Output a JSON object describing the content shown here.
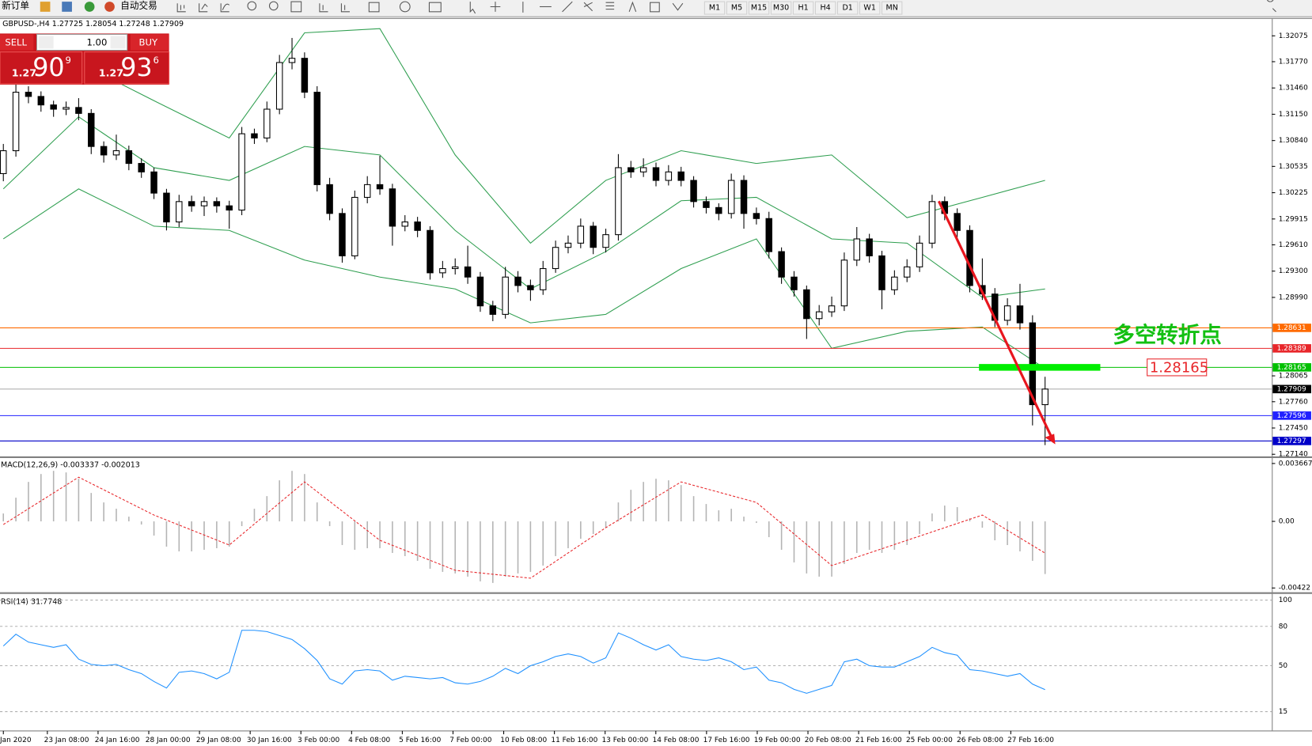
{
  "toolbar": {
    "new_order": "新订单",
    "auto_trading": "自动交易",
    "timeframes": [
      "M1",
      "M5",
      "M15",
      "M30",
      "H1",
      "H4",
      "D1",
      "W1",
      "MN"
    ]
  },
  "trade_panel": {
    "sell": "SELL",
    "lot": "1.00",
    "buy": "BUY",
    "sell_price": {
      "big": "1.27",
      "main": "90",
      "frac": "9"
    },
    "buy_price": {
      "big": "1.27",
      "main": "93",
      "frac": "6"
    }
  },
  "time_axis": [
    "Jan 2020",
    "23 Jan 08:00",
    "24 Jan 16:00",
    "28 Jan 00:00",
    "29 Jan 08:00",
    "30 Jan 16:00",
    "3 Feb 00:00",
    "4 Feb 08:00",
    "5 Feb 16:00",
    "7 Feb 00:00",
    "10 Feb 08:00",
    "11 Feb 16:00",
    "13 Feb 00:00",
    "14 Feb 08:00",
    "17 Feb 16:00",
    "19 Feb 00:00",
    "20 Feb 08:00",
    "21 Feb 16:00",
    "25 Feb 00:00",
    "26 Feb 08:00",
    "27 Feb 16:00"
  ],
  "chart_data": [
    {
      "type": "candlestick",
      "title": "GBPUSD-,H4 1.27725 1.28054 1.27248 1.27909",
      "bull_color": "#ffffff",
      "bear_color": "#000000",
      "candles": [
        [
          1.3045,
          1.308,
          1.3036,
          1.3072
        ],
        [
          1.3072,
          1.315,
          1.3065,
          1.3141
        ],
        [
          1.3141,
          1.3148,
          1.3128,
          1.3136
        ],
        [
          1.3136,
          1.3142,
          1.3118,
          1.3126
        ],
        [
          1.3126,
          1.3131,
          1.3112,
          1.3121
        ],
        [
          1.3121,
          1.313,
          1.3114,
          1.3123
        ],
        [
          1.3123,
          1.3134,
          1.3108,
          1.3116
        ],
        [
          1.3116,
          1.3121,
          1.3068,
          1.3077
        ],
        [
          1.3077,
          1.3083,
          1.3058,
          1.3067
        ],
        [
          1.3067,
          1.3091,
          1.3061,
          1.3072
        ],
        [
          1.3072,
          1.3078,
          1.3049,
          1.3057
        ],
        [
          1.3057,
          1.3063,
          1.304,
          1.3047
        ],
        [
          1.3047,
          1.3052,
          1.3015,
          1.3022
        ],
        [
          1.3022,
          1.3027,
          1.2978,
          1.2988
        ],
        [
          1.2988,
          1.302,
          1.2982,
          1.3012
        ],
        [
          1.3012,
          1.3019,
          1.3,
          1.3007
        ],
        [
          1.3007,
          1.3018,
          1.2995,
          1.3012
        ],
        [
          1.3012,
          1.3017,
          1.2999,
          1.3007
        ],
        [
          1.3007,
          1.3013,
          1.298,
          1.3002
        ],
        [
          1.3002,
          1.31,
          1.2996,
          1.3092
        ],
        [
          1.3092,
          1.3098,
          1.308,
          1.3087
        ],
        [
          1.3087,
          1.313,
          1.3082,
          1.3121
        ],
        [
          1.3121,
          1.3185,
          1.3115,
          1.3176
        ],
        [
          1.3176,
          1.3205,
          1.3168,
          1.3181
        ],
        [
          1.3181,
          1.3188,
          1.3134,
          1.3141
        ],
        [
          1.3141,
          1.3148,
          1.3024,
          1.3032
        ],
        [
          1.3032,
          1.304,
          1.299,
          1.2998
        ],
        [
          1.2998,
          1.3004,
          1.294,
          1.2948
        ],
        [
          1.2948,
          1.3025,
          1.2944,
          1.3017
        ],
        [
          1.3017,
          1.3042,
          1.301,
          1.3032
        ],
        [
          1.3032,
          1.3066,
          1.302,
          1.3027
        ],
        [
          1.3027,
          1.3033,
          1.296,
          1.2983
        ],
        [
          1.2983,
          1.2996,
          1.2977,
          1.2988
        ],
        [
          1.2988,
          1.2994,
          1.297,
          1.2978
        ],
        [
          1.2978,
          1.2983,
          1.292,
          1.2928
        ],
        [
          1.2928,
          1.2942,
          1.2922,
          1.2933
        ],
        [
          1.2933,
          1.2945,
          1.2926,
          1.2935
        ],
        [
          1.2935,
          1.296,
          1.2915,
          1.2923
        ],
        [
          1.2923,
          1.2929,
          1.2882,
          1.2889
        ],
        [
          1.2889,
          1.2895,
          1.2871,
          1.2879
        ],
        [
          1.2879,
          1.2935,
          1.2874,
          1.2923
        ],
        [
          1.2923,
          1.293,
          1.2905,
          1.2913
        ],
        [
          1.2913,
          1.292,
          1.2895,
          1.2908
        ],
        [
          1.2908,
          1.2942,
          1.2902,
          1.2933
        ],
        [
          1.2933,
          1.2966,
          1.2928,
          1.2958
        ],
        [
          1.2958,
          1.2972,
          1.2951,
          1.2963
        ],
        [
          1.2963,
          1.2992,
          1.2957,
          1.2983
        ],
        [
          1.2983,
          1.2988,
          1.295,
          1.2958
        ],
        [
          1.2958,
          1.298,
          1.2952,
          1.2973
        ],
        [
          1.2973,
          1.3068,
          1.2966,
          1.3052
        ],
        [
          1.3052,
          1.306,
          1.304,
          1.3047
        ],
        [
          1.3047,
          1.3063,
          1.3041,
          1.3052
        ],
        [
          1.3052,
          1.3058,
          1.303,
          1.3037
        ],
        [
          1.3037,
          1.3055,
          1.3031,
          1.3047
        ],
        [
          1.3047,
          1.3053,
          1.303,
          1.3037
        ],
        [
          1.3037,
          1.3042,
          1.3005,
          1.3012
        ],
        [
          1.3012,
          1.3018,
          1.2998,
          1.3005
        ],
        [
          1.3005,
          1.301,
          1.299,
          1.2998
        ],
        [
          1.2998,
          1.3045,
          1.2992,
          1.3037
        ],
        [
          1.3037,
          1.3043,
          1.298,
          1.2998
        ],
        [
          1.2998,
          1.3005,
          1.2985,
          1.2992
        ],
        [
          1.2992,
          1.3,
          1.2945,
          1.2953
        ],
        [
          1.2953,
          1.2958,
          1.2915,
          1.2923
        ],
        [
          1.2923,
          1.293,
          1.29,
          1.2908
        ],
        [
          1.2908,
          1.2913,
          1.285,
          1.2874
        ],
        [
          1.2874,
          1.289,
          1.2866,
          1.2882
        ],
        [
          1.2882,
          1.29,
          1.2876,
          1.2889
        ],
        [
          1.2889,
          1.2952,
          1.2883,
          1.2943
        ],
        [
          1.2943,
          1.2982,
          1.2936,
          1.2968
        ],
        [
          1.2968,
          1.2974,
          1.294,
          1.2948
        ],
        [
          1.2948,
          1.2954,
          1.2885,
          1.2908
        ],
        [
          1.2908,
          1.2931,
          1.2902,
          1.2923
        ],
        [
          1.2923,
          1.2944,
          1.2917,
          1.2935
        ],
        [
          1.2935,
          1.2972,
          1.2929,
          1.2963
        ],
        [
          1.2963,
          1.302,
          1.2957,
          1.3012
        ],
        [
          1.3012,
          1.3018,
          1.299,
          1.2998
        ],
        [
          1.2998,
          1.3004,
          1.297,
          1.2978
        ],
        [
          1.2978,
          1.2984,
          1.2905,
          1.2913
        ],
        [
          1.2913,
          1.2945,
          1.2896,
          1.2903
        ],
        [
          1.2903,
          1.291,
          1.2864,
          1.2872
        ],
        [
          1.2872,
          1.2898,
          1.2866,
          1.2889
        ],
        [
          1.2889,
          1.2915,
          1.2861,
          1.2869
        ],
        [
          1.2869,
          1.2878,
          1.2748,
          1.27725
        ],
        [
          1.27725,
          1.28054,
          1.27248,
          1.27909
        ]
      ],
      "bands": {
        "color": "#2e9e4f",
        "index": [
          0,
          6,
          12,
          18,
          24,
          30,
          36,
          42,
          48,
          54,
          60,
          66,
          72,
          78,
          83
        ],
        "upper": [
          1.3181,
          1.3176,
          1.3131,
          1.3087,
          1.3211,
          1.3216,
          1.3067,
          1.2963,
          1.3037,
          1.3072,
          1.3057,
          1.3067,
          1.2993,
          1.3017,
          1.3037
        ],
        "middle": [
          1.3027,
          1.3112,
          1.3052,
          1.3037,
          1.3077,
          1.3067,
          1.2978,
          1.2909,
          1.2953,
          1.3013,
          1.3017,
          1.2968,
          1.2963,
          1.2899,
          1.2909
        ],
        "lower": [
          1.2968,
          1.3027,
          1.2983,
          1.2978,
          1.2943,
          1.2923,
          1.2909,
          1.2869,
          1.2879,
          1.2933,
          1.2968,
          1.2839,
          1.2859,
          1.2864,
          1.2815
        ]
      },
      "levels": [
        {
          "value": 1.28631,
          "color": "#ff6a00"
        },
        {
          "value": 1.28389,
          "color": "#e8262a"
        },
        {
          "value": 1.28165,
          "color": "#00c000"
        },
        {
          "value": 1.27909,
          "color": "#000000"
        },
        {
          "value": 1.27596,
          "color": "#2020ff"
        },
        {
          "value": 1.27297,
          "color": "#0000c8"
        }
      ],
      "annotation": "多空转折点",
      "marker": 1.28165,
      "marker_color": "#00ee00",
      "ylim": [
        1.2711,
        1.3228
      ],
      "yticks": [
        1.32075,
        {
          "value": 1.3177,
          "label": "1.31770"
        },
        {
          "value": 1.3146,
          "label": "1.31460"
        },
        {
          "value": 1.3115,
          "label": "1.31150"
        },
        {
          "value": 1.3084,
          "label": "1.30840"
        },
        1.30535,
        1.30225,
        1.29915,
        {
          "value": 1.2961,
          "label": "1.29610"
        },
        {
          "value": 1.293,
          "label": "1.29300"
        },
        {
          "value": 1.2899,
          "label": "1.28990"
        },
        1.28065,
        {
          "value": 1.2776,
          "label": "1.27760"
        },
        {
          "value": 1.2745,
          "label": "1.27450"
        },
        {
          "value": 1.2714,
          "label": "1.27140"
        }
      ]
    },
    {
      "type": "macd",
      "title": "MACD(12,26,9) -0.003337 -0.002013",
      "color": "#b4b4b4",
      "signal_color": "#e8262a",
      "histogram": [
        0.0005,
        0.0015,
        0.0025,
        0.003,
        0.0032,
        0.0031,
        0.0027,
        0.0018,
        0.0012,
        0.0008,
        0.0003,
        -0.0002,
        -0.0009,
        -0.0016,
        -0.0019,
        -0.0019,
        -0.0018,
        -0.0017,
        -0.0016,
        -0.0003,
        0.0008,
        0.0016,
        0.0026,
        0.0032,
        0.003,
        0.0012,
        -0.0003,
        -0.0015,
        -0.0018,
        -0.0017,
        -0.0017,
        -0.002,
        -0.0022,
        -0.0025,
        -0.003,
        -0.0032,
        -0.0033,
        -0.0035,
        -0.0038,
        -0.0039,
        -0.0035,
        -0.0033,
        -0.0032,
        -0.0028,
        -0.0022,
        -0.0017,
        -0.0011,
        -0.0008,
        -0.0004,
        0.0012,
        0.002,
        0.0025,
        0.0027,
        0.0026,
        0.0023,
        0.0016,
        0.0011,
        0.0007,
        0.0008,
        0.0003,
        -0.0001,
        -0.001,
        -0.0018,
        -0.0026,
        -0.0033,
        -0.0035,
        -0.0035,
        -0.0027,
        -0.002,
        -0.0018,
        -0.002,
        -0.0018,
        -0.0015,
        -0.0008,
        0.0005,
        0.001,
        0.0009,
        0.0002,
        -0.0004,
        -0.0012,
        -0.0015,
        -0.0019,
        -0.0025,
        -0.003337
      ],
      "signal_index": [
        0,
        6,
        12,
        18,
        24,
        30,
        36,
        42,
        48,
        54,
        60,
        66,
        72,
        78,
        83
      ],
      "signal": [
        -0.0002,
        0.0028,
        0.0004,
        -0.0015,
        0.0025,
        -0.0012,
        -0.0031,
        -0.0036,
        -0.0004,
        0.0025,
        0.0012,
        -0.0028,
        -0.0012,
        0.0004,
        -0.002013
      ],
      "ylim": [
        -0.00446,
        0.00393
      ],
      "yticks": [
        0.003667,
        {
          "value": 0,
          "label": "0.00"
        },
        -0.00422
      ]
    },
    {
      "type": "rsi",
      "title": "RSI(14) 31.7748",
      "color": "#1e90ff",
      "values": [
        65,
        74,
        68,
        66,
        64,
        66,
        55,
        51,
        50,
        51,
        47,
        44,
        38,
        33,
        45,
        46,
        44,
        40,
        45,
        77,
        77,
        76,
        73,
        70,
        63,
        54,
        40,
        36,
        46,
        47,
        46,
        39,
        42,
        41,
        40,
        41,
        37,
        36,
        38,
        42,
        48,
        44,
        50,
        53,
        57,
        59,
        57,
        52,
        56,
        75,
        71,
        66,
        62,
        66,
        57,
        55,
        54,
        56,
        53,
        47,
        49,
        39,
        37,
        32,
        29,
        32,
        35,
        53,
        55,
        50,
        49,
        49,
        53,
        57,
        64,
        60,
        58,
        47,
        46,
        44,
        42,
        44,
        36,
        31.7748
      ],
      "ylim": [
        1.6,
        103.8
      ],
      "yticks": [
        100,
        80,
        50,
        15
      ],
      "grid": true
    }
  ]
}
